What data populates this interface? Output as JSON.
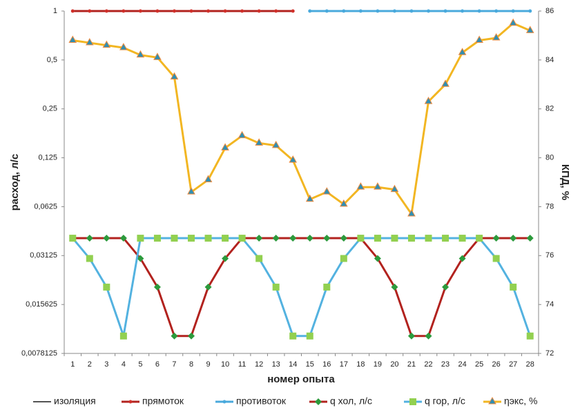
{
  "chart_data": {
    "type": "line",
    "x_label": "номер опыта",
    "y_label": "расход, л/с",
    "y2_label": "КПД, %",
    "categories": [
      "1",
      "2",
      "3",
      "4",
      "5",
      "6",
      "7",
      "8",
      "9",
      "10",
      "11",
      "12",
      "13",
      "14",
      "15",
      "16",
      "17",
      "18",
      "19",
      "20",
      "21",
      "22",
      "23",
      "24",
      "25",
      "26",
      "27",
      "28"
    ],
    "yscale": "log",
    "ylim": [
      0.0078125,
      1
    ],
    "yticks": [
      {
        "value": 0.0078125,
        "label": "0,0078125"
      },
      {
        "value": 0.015625,
        "label": "0,015625"
      },
      {
        "value": 0.03125,
        "label": "0,03125"
      },
      {
        "value": 0.0625,
        "label": "0,0625"
      },
      {
        "value": 0.125,
        "label": "0,125"
      },
      {
        "value": 0.25,
        "label": "0,25"
      },
      {
        "value": 0.5,
        "label": "0,5"
      },
      1
    ],
    "y2lim": [
      72,
      86
    ],
    "y2ticks": [
      72,
      74,
      76,
      78,
      80,
      82,
      84,
      86
    ],
    "grid": false,
    "legend": "bottom",
    "series": [
      {
        "name": "изоляция",
        "color": "#1a1a1a",
        "marker": "none",
        "axis": "y",
        "values": [
          null,
          null,
          null,
          null,
          null,
          null,
          null,
          null,
          null,
          null,
          null,
          null,
          null,
          null,
          null,
          null,
          null,
          null,
          null,
          null,
          null,
          null,
          null,
          null,
          null,
          null,
          null,
          null
        ]
      },
      {
        "name": "прямоток",
        "color": "#b2221e",
        "marker": "circle",
        "marker_color": "#d0302a",
        "axis": "y",
        "values": [
          1,
          1,
          1,
          1,
          1,
          1,
          1,
          1,
          1,
          1,
          1,
          1,
          1,
          1,
          null,
          null,
          null,
          null,
          null,
          null,
          null,
          null,
          null,
          null,
          null,
          null,
          null,
          null
        ]
      },
      {
        "name": "противоток",
        "color": "#49a9dc",
        "marker": "circle",
        "marker_color": "#49a9dc",
        "axis": "y",
        "values": [
          null,
          null,
          null,
          null,
          null,
          null,
          null,
          null,
          null,
          null,
          null,
          null,
          null,
          null,
          1,
          1,
          1,
          1,
          1,
          1,
          1,
          1,
          1,
          1,
          1,
          1,
          1,
          1
        ]
      },
      {
        "name": "q хол, л/с",
        "color": "#b2221e",
        "marker": "diamond",
        "marker_color": "#2c9a3c",
        "axis": "y",
        "values": [
          0.04,
          0.04,
          0.04,
          0.04,
          0.03,
          0.02,
          0.01,
          0.01,
          0.02,
          0.03,
          0.04,
          0.04,
          0.04,
          0.04,
          0.04,
          0.04,
          0.04,
          0.04,
          0.03,
          0.02,
          0.01,
          0.01,
          0.02,
          0.03,
          0.04,
          0.04,
          0.04,
          0.04
        ]
      },
      {
        "name": "q гор, л/с",
        "color": "#53b2e0",
        "marker": "square",
        "marker_color": "#92d050",
        "axis": "y",
        "values": [
          0.04,
          0.03,
          0.02,
          0.01,
          0.04,
          0.04,
          0.04,
          0.04,
          0.04,
          0.04,
          0.04,
          0.03,
          0.02,
          0.01,
          0.01,
          0.02,
          0.03,
          0.04,
          0.04,
          0.04,
          0.04,
          0.04,
          0.04,
          0.04,
          0.04,
          0.03,
          0.02,
          0.01
        ]
      },
      {
        "name": "ηэкс, %",
        "color": "#f2b622",
        "marker": "triangle",
        "marker_color": "#2f8fb3",
        "axis": "y2",
        "values": [
          84.8,
          84.7,
          84.6,
          84.5,
          84.2,
          84.1,
          83.3,
          78.6,
          79.1,
          80.4,
          80.9,
          80.6,
          80.5,
          79.9,
          78.3,
          78.6,
          78.1,
          78.8,
          78.8,
          78.7,
          77.7,
          82.3,
          83.0,
          84.3,
          84.8,
          84.9,
          85.5,
          85.2
        ]
      }
    ]
  }
}
